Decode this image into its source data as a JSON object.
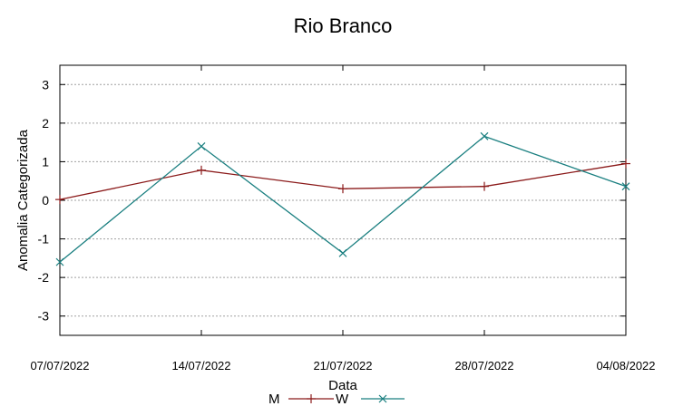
{
  "chart_data": {
    "type": "line",
    "title": "Rio Branco",
    "xlabel": "Data",
    "ylabel": "Anomalia Categorizada",
    "ylim": [
      -3.5,
      3.5
    ],
    "yticks": [
      -3,
      -2,
      -1,
      0,
      1,
      2,
      3
    ],
    "categories": [
      "07/07/2022",
      "14/07/2022",
      "21/07/2022",
      "28/07/2022",
      "04/08/2022"
    ],
    "grid": "horizontal",
    "legend_position": "bottom",
    "series": [
      {
        "name": "M",
        "color": "#8b1a1a",
        "marker": "plus",
        "values": [
          0.02,
          0.78,
          0.3,
          0.36,
          0.95
        ]
      },
      {
        "name": "W",
        "color": "#1a7f80",
        "marker": "cross",
        "values": [
          -1.6,
          1.4,
          -1.37,
          1.66,
          0.36
        ]
      }
    ]
  }
}
